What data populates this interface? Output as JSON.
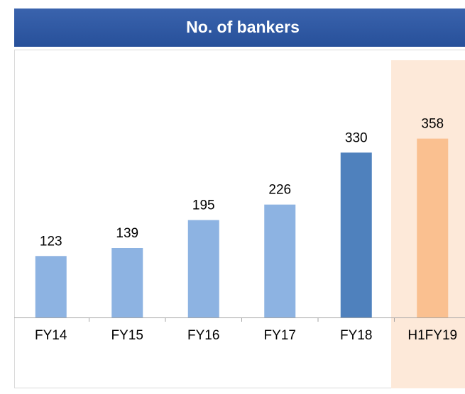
{
  "chart_data": {
    "type": "bar",
    "title": "No. of bankers",
    "categories": [
      "FY14",
      "FY15",
      "FY16",
      "FY17",
      "FY18",
      "H1FY19"
    ],
    "values": [
      123,
      139,
      195,
      226,
      330,
      358
    ],
    "colors": [
      "#8db3e2",
      "#8db3e2",
      "#8db3e2",
      "#8db3e2",
      "#4f81bd",
      "#fac090"
    ]
  }
}
